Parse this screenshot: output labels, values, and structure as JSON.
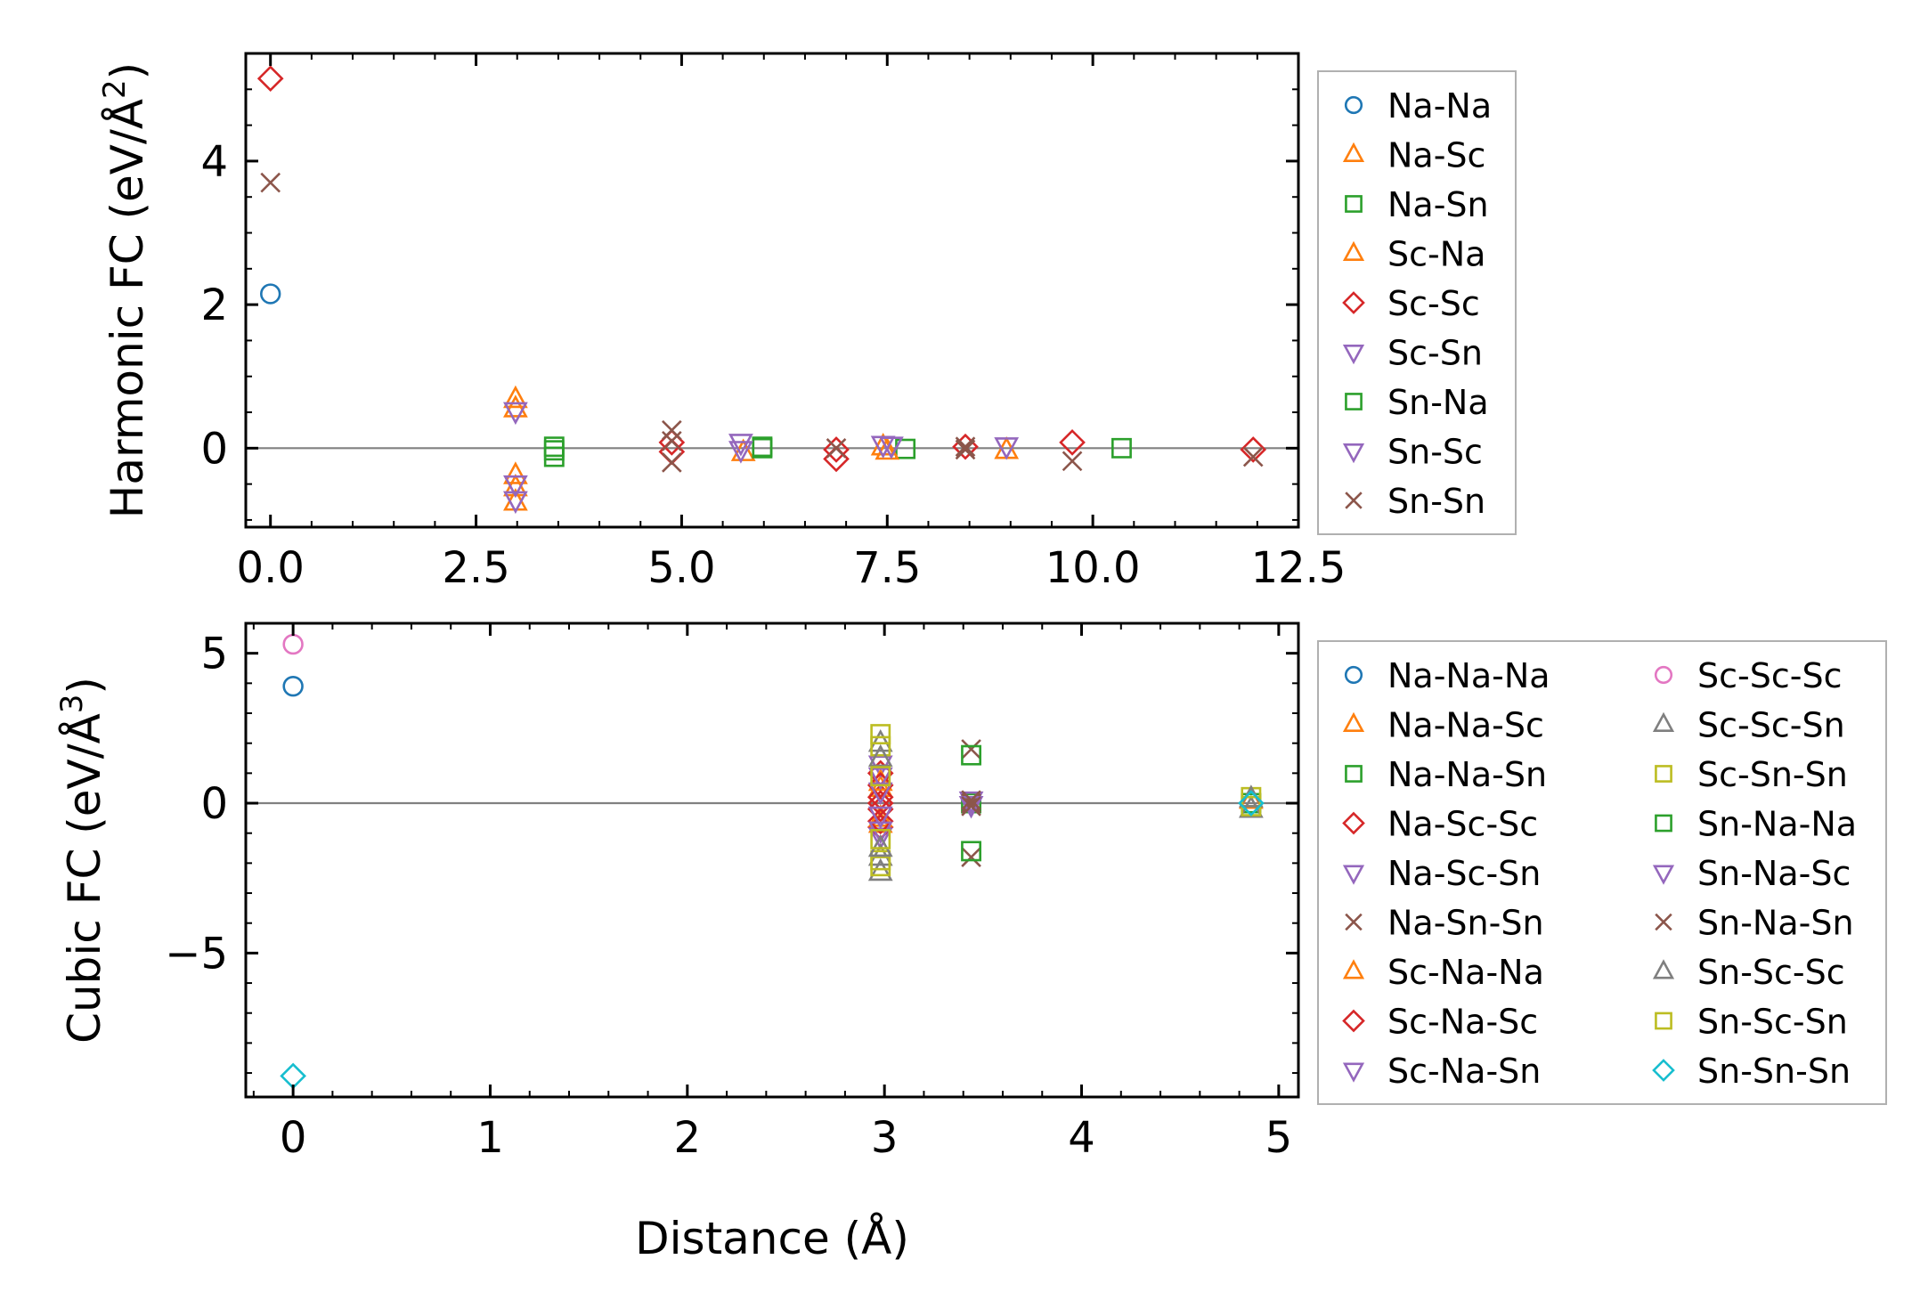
{
  "colors": {
    "blue": "#1f77b4",
    "orange": "#ff7f0e",
    "green": "#2ca02c",
    "red": "#d62728",
    "purple": "#9467bd",
    "brown": "#8c564b",
    "pink": "#e377c2",
    "gray": "#7f7f7f",
    "olive": "#bcbd22",
    "cyan": "#17becf"
  },
  "chart_data": [
    {
      "type": "scatter",
      "title": "",
      "xlabel": "",
      "ylabel": "Harmonic FC (eV/Å²)",
      "ylabel_main": "Harmonic FC (eV/Å",
      "ylabel_sup": "2",
      "ylabel_close": ")",
      "xlim": [
        -0.3,
        12.5
      ],
      "ylim": [
        -1.1,
        5.5
      ],
      "xticks": [
        0,
        2.5,
        5,
        7.5,
        10,
        12.5
      ],
      "xtick_labels": [
        "0.0",
        "2.5",
        "5.0",
        "7.5",
        "10.0",
        "12.5"
      ],
      "yticks": [
        0,
        2,
        4
      ],
      "ytick_labels": [
        "0",
        "2",
        "4"
      ],
      "zero_line": true,
      "grid": false,
      "legend_position": "right",
      "series": [
        {
          "name": "Na-Na",
          "marker": "circle",
          "color": "blue",
          "points": [
            [
              0.0,
              2.15
            ]
          ]
        },
        {
          "name": "Na-Sc",
          "marker": "triangle-up",
          "color": "orange",
          "points": [
            [
              2.98,
              0.68
            ],
            [
              2.98,
              -0.38
            ],
            [
              2.98,
              -0.75
            ],
            [
              5.75,
              -0.06
            ],
            [
              7.45,
              0.02
            ],
            [
              8.95,
              -0.03
            ]
          ]
        },
        {
          "name": "Na-Sn",
          "marker": "square",
          "color": "green",
          "points": [
            [
              3.45,
              0.02
            ],
            [
              3.45,
              -0.12
            ],
            [
              5.98,
              0.0
            ],
            [
              7.72,
              -0.01
            ],
            [
              10.35,
              0.0
            ]
          ]
        },
        {
          "name": "Sc-Na",
          "marker": "triangle-up",
          "color": "orange",
          "points": [
            [
              2.98,
              0.55
            ],
            [
              2.98,
              -0.55
            ],
            [
              7.5,
              -0.04
            ]
          ]
        },
        {
          "name": "Sc-Sc",
          "marker": "diamond",
          "color": "red",
          "points": [
            [
              0.0,
              5.15
            ],
            [
              4.88,
              0.08
            ],
            [
              4.88,
              -0.05
            ],
            [
              6.88,
              -0.02
            ],
            [
              6.88,
              -0.15
            ],
            [
              8.45,
              0.02
            ],
            [
              9.75,
              0.08
            ],
            [
              11.95,
              -0.02
            ]
          ]
        },
        {
          "name": "Sc-Sn",
          "marker": "triangle-down",
          "color": "purple",
          "points": [
            [
              2.98,
              0.52
            ],
            [
              2.98,
              -0.5
            ],
            [
              5.72,
              0.08
            ],
            [
              7.45,
              0.05
            ],
            [
              8.95,
              0.03
            ]
          ]
        },
        {
          "name": "Sn-Na",
          "marker": "square",
          "color": "green",
          "points": [
            [
              3.45,
              -0.03
            ],
            [
              5.98,
              0.02
            ]
          ]
        },
        {
          "name": "Sn-Sc",
          "marker": "triangle-down",
          "color": "purple",
          "points": [
            [
              2.98,
              -0.72
            ],
            [
              5.72,
              -0.02
            ],
            [
              7.55,
              0.04
            ]
          ]
        },
        {
          "name": "Sn-Sn",
          "marker": "x",
          "color": "brown",
          "points": [
            [
              0.0,
              3.7
            ],
            [
              4.88,
              0.25
            ],
            [
              4.88,
              0.1
            ],
            [
              4.88,
              -0.2
            ],
            [
              6.88,
              0.0
            ],
            [
              8.45,
              0.02
            ],
            [
              8.45,
              -0.02
            ],
            [
              9.75,
              -0.18
            ],
            [
              11.95,
              -0.12
            ]
          ]
        }
      ]
    },
    {
      "type": "scatter",
      "title": "",
      "xlabel": "Distance (Å)",
      "ylabel": "Cubic FC (eV/Å³)",
      "ylabel_main": "Cubic FC (eV/Å",
      "ylabel_sup": "3",
      "ylabel_close": ")",
      "xlim": [
        -0.24,
        5.1
      ],
      "ylim": [
        -9.8,
        6.0
      ],
      "xticks": [
        0,
        1,
        2,
        3,
        4,
        5
      ],
      "xtick_labels": [
        "0",
        "1",
        "2",
        "3",
        "4",
        "5"
      ],
      "yticks": [
        5,
        0,
        -5
      ],
      "ytick_labels": [
        "5",
        "0",
        "−5"
      ],
      "zero_line": true,
      "grid": false,
      "legend_position": "right",
      "series": [
        {
          "name": "Na-Na-Na",
          "marker": "circle",
          "color": "blue",
          "points": [
            [
              0.0,
              3.9
            ]
          ]
        },
        {
          "name": "Na-Na-Sc",
          "marker": "triangle-up",
          "color": "orange",
          "points": [
            [
              2.98,
              0.5
            ],
            [
              2.98,
              -0.7
            ],
            [
              4.86,
              0.1
            ]
          ]
        },
        {
          "name": "Na-Na-Sn",
          "marker": "square",
          "color": "green",
          "points": [
            [
              3.44,
              0.0
            ],
            [
              4.86,
              0.0
            ]
          ]
        },
        {
          "name": "Na-Sc-Sc",
          "marker": "diamond",
          "color": "red",
          "points": [
            [
              2.98,
              1.0
            ],
            [
              2.98,
              0.2
            ],
            [
              2.98,
              -0.2
            ],
            [
              2.98,
              -0.8
            ]
          ]
        },
        {
          "name": "Na-Sc-Sn",
          "marker": "triangle-down",
          "color": "purple",
          "points": [
            [
              2.98,
              1.3
            ],
            [
              2.98,
              -1.1
            ],
            [
              3.44,
              0.1
            ]
          ]
        },
        {
          "name": "Na-Sn-Sn",
          "marker": "x",
          "color": "brown",
          "points": [
            [
              3.44,
              1.8
            ],
            [
              3.44,
              -1.8
            ],
            [
              3.44,
              0.0
            ]
          ]
        },
        {
          "name": "Sc-Na-Na",
          "marker": "triangle-up",
          "color": "orange",
          "points": [
            [
              2.98,
              0.7
            ],
            [
              2.98,
              -0.5
            ]
          ]
        },
        {
          "name": "Sc-Na-Sc",
          "marker": "diamond",
          "color": "red",
          "points": [
            [
              2.98,
              0.6
            ],
            [
              2.98,
              -0.6
            ],
            [
              2.98,
              0.0
            ]
          ]
        },
        {
          "name": "Sc-Na-Sn",
          "marker": "triangle-down",
          "color": "purple",
          "points": [
            [
              2.98,
              0.9
            ],
            [
              2.98,
              -0.9
            ]
          ]
        },
        {
          "name": "Sc-Sc-Sc",
          "marker": "circle",
          "color": "pink",
          "points": [
            [
              0.0,
              5.3
            ]
          ]
        },
        {
          "name": "Sc-Sc-Sn",
          "marker": "triangle-up",
          "color": "gray",
          "points": [
            [
              2.98,
              2.0
            ],
            [
              2.98,
              -2.3
            ],
            [
              2.98,
              -1.8
            ],
            [
              4.86,
              -0.2
            ]
          ]
        },
        {
          "name": "Sc-Sn-Sn",
          "marker": "square",
          "color": "olive",
          "points": [
            [
              2.98,
              2.3
            ],
            [
              2.98,
              1.9
            ],
            [
              2.98,
              -1.9
            ],
            [
              2.98,
              -2.1
            ],
            [
              4.86,
              0.2
            ]
          ]
        },
        {
          "name": "Sn-Na-Na",
          "marker": "square",
          "color": "green",
          "points": [
            [
              3.44,
              1.6
            ],
            [
              3.44,
              -1.6
            ]
          ]
        },
        {
          "name": "Sn-Na-Sc",
          "marker": "triangle-down",
          "color": "purple",
          "points": [
            [
              2.98,
              0.4
            ],
            [
              2.98,
              -0.4
            ],
            [
              3.44,
              -0.05
            ]
          ]
        },
        {
          "name": "Sn-Na-Sn",
          "marker": "x",
          "color": "brown",
          "points": [
            [
              3.44,
              0.1
            ],
            [
              3.44,
              -0.1
            ]
          ]
        },
        {
          "name": "Sn-Sc-Sc",
          "marker": "triangle-up",
          "color": "gray",
          "points": [
            [
              2.98,
              1.5
            ],
            [
              2.98,
              -1.5
            ],
            [
              4.86,
              0.15
            ]
          ]
        },
        {
          "name": "Sn-Sc-Sn",
          "marker": "square",
          "color": "olive",
          "points": [
            [
              2.98,
              0.9
            ],
            [
              2.98,
              -1.2
            ],
            [
              4.86,
              -0.1
            ]
          ]
        },
        {
          "name": "Sn-Sn-Sn",
          "marker": "diamond",
          "color": "cyan",
          "points": [
            [
              0.0,
              -9.1
            ],
            [
              4.86,
              0.0
            ]
          ]
        }
      ]
    }
  ]
}
